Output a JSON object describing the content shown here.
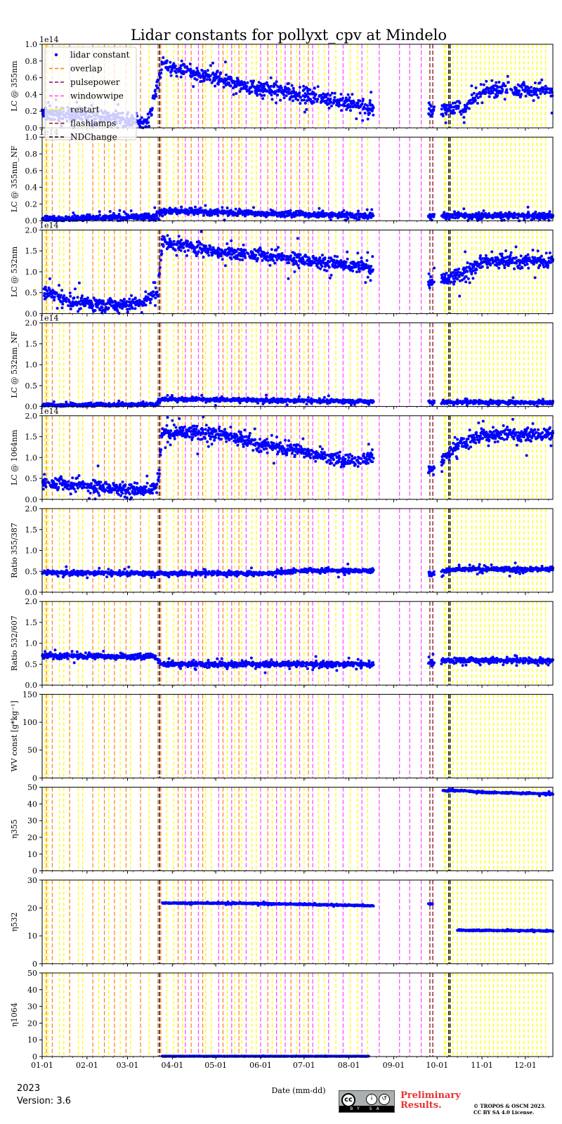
{
  "title": "Lidar constants for pollyxt_cpv at Mindelo",
  "footer": {
    "year": "2023",
    "version": "Version: 3.6",
    "license_badge": "cc",
    "license_by": "BY",
    "license_sa": "SA",
    "preliminary_line1": "Preliminary",
    "preliminary_line2": "Results.",
    "copyright_line1": "© TROPOS & OSCM 2023.",
    "copyright_line2": "CC BY SA 4.0 License."
  },
  "colors": {
    "points": "#0000ff",
    "overlap": "#ff7f0e",
    "pulsepower": "#8b008b",
    "windowwipe": "#ff44ff",
    "restart": "#ffff00",
    "flashlamps": "#8b1a1a",
    "ndchange": "#000000"
  },
  "chart_data": {
    "type": "scatter",
    "title": "Lidar constants for pollyxt_cpv at Mindelo",
    "xlabel": "Date (mm-dd)",
    "x_range": [
      "2023-01-01",
      "2023-12-20"
    ],
    "x_tick_labels": [
      "01-01",
      "02-01",
      "03-01",
      "04-01",
      "05-01",
      "06-01",
      "07-01",
      "08-01",
      "09-01",
      "10-01",
      "11-01",
      "12-01"
    ],
    "legend": {
      "placement": "top-left",
      "entries": [
        "lidar constant",
        "overlap",
        "pulsepower",
        "windowwipe",
        "restart",
        "flashlamps",
        "NDChange"
      ]
    },
    "event_lines": {
      "overlap": [
        "01-04",
        "01-08",
        "01-20",
        "02-05",
        "02-13",
        "02-20",
        "02-28",
        "03-10",
        "03-22",
        "03-24",
        "04-05",
        "04-14",
        "04-22",
        "05-06",
        "05-17",
        "06-06",
        "06-22",
        "07-04"
      ],
      "pulsepower": [
        "03-23"
      ],
      "windowwipe": [
        "03-24",
        "04-10",
        "04-19",
        "05-03",
        "05-12",
        "05-22",
        "06-01",
        "06-12",
        "06-18",
        "06-28",
        "07-07",
        "07-18",
        "07-28",
        "08-10",
        "08-22",
        "09-05",
        "09-12",
        "09-20",
        "09-28"
      ],
      "restart": [
        "01-03",
        "01-05",
        "01-13",
        "01-16",
        "01-26",
        "01-29",
        "02-09",
        "02-16",
        "02-24",
        "03-03",
        "03-16",
        "03-28",
        "04-02",
        "04-08",
        "04-24",
        "04-28",
        "05-09",
        "05-14",
        "05-19",
        "05-26",
        "05-29",
        "06-09",
        "06-15",
        "06-26",
        "07-01",
        "07-11",
        "07-15",
        "07-23",
        "08-02",
        "08-07",
        "08-14",
        "10-06",
        "10-07",
        "10-09",
        "10-12",
        "10-15",
        "10-18",
        "10-21",
        "10-25",
        "10-28",
        "10-31",
        "11-03",
        "11-06",
        "11-09",
        "11-12",
        "11-15",
        "11-18",
        "11-21",
        "11-24",
        "11-27",
        "11-30",
        "12-03",
        "12-06",
        "12-09",
        "12-12",
        "12-15"
      ],
      "flashlamps": [
        "09-26",
        "09-28"
      ],
      "ndchange": [
        "03-23",
        "10-09",
        "10-10"
      ]
    },
    "panels": [
      {
        "ylabel": "LC @ 355nm",
        "ylim": [
          0,
          1.0
        ],
        "yticks": [
          "0.0",
          "0.2",
          "0.4",
          "0.6",
          "0.8",
          "1.0"
        ],
        "scale_label": "1e14",
        "trend": [
          [
            "01-01",
            0.18
          ],
          [
            "02-15",
            0.12
          ],
          [
            "03-15",
            0.06
          ],
          [
            "03-25",
            0.75
          ],
          [
            "05-01",
            0.58
          ],
          [
            "06-01",
            0.47
          ],
          [
            "07-01",
            0.4
          ],
          [
            "08-01",
            0.3
          ],
          [
            "08-15",
            0.22
          ],
          [
            "09-28",
            0.22
          ],
          [
            "10-20",
            0.22
          ],
          [
            "11-01",
            0.45
          ],
          [
            "12-01",
            0.45
          ],
          [
            "12-20",
            0.45
          ]
        ],
        "spread": 0.12
      },
      {
        "ylabel": "LC @ 355nm_NF",
        "ylim": [
          0,
          1.0
        ],
        "yticks": [
          "0.0",
          "0.2",
          "0.4",
          "0.6",
          "0.8",
          "1.0"
        ],
        "scale_label": "1e14",
        "trend": [
          [
            "01-01",
            0.02
          ],
          [
            "03-20",
            0.05
          ],
          [
            "03-25",
            0.12
          ],
          [
            "05-01",
            0.1
          ],
          [
            "08-15",
            0.06
          ],
          [
            "09-28",
            0.06
          ],
          [
            "12-20",
            0.06
          ]
        ],
        "spread": 0.05
      },
      {
        "ylabel": "LC @ 532nm",
        "ylim": [
          0,
          2.0
        ],
        "yticks": [
          "0.0",
          "0.5",
          "1.0",
          "1.5",
          "2.0"
        ],
        "scale_label": "1e14",
        "trend": [
          [
            "01-01",
            0.55
          ],
          [
            "01-20",
            0.3
          ],
          [
            "02-15",
            0.2
          ],
          [
            "03-10",
            0.25
          ],
          [
            "03-22",
            0.5
          ],
          [
            "03-25",
            1.7
          ],
          [
            "05-01",
            1.5
          ],
          [
            "06-01",
            1.4
          ],
          [
            "07-01",
            1.3
          ],
          [
            "08-01",
            1.15
          ],
          [
            "08-15",
            1.1
          ],
          [
            "09-28",
            0.75
          ],
          [
            "10-15",
            0.9
          ],
          [
            "11-01",
            1.25
          ],
          [
            "12-01",
            1.25
          ],
          [
            "12-20",
            1.25
          ]
        ],
        "spread": 0.22
      },
      {
        "ylabel": "LC @ 532nm_NF",
        "ylim": [
          0,
          2.0
        ],
        "yticks": [
          "0.0",
          "0.5",
          "1.0",
          "1.5",
          "2.0"
        ],
        "scale_label": "1e14",
        "trend": [
          [
            "01-01",
            0.03
          ],
          [
            "03-20",
            0.05
          ],
          [
            "03-25",
            0.18
          ],
          [
            "06-01",
            0.15
          ],
          [
            "08-15",
            0.12
          ],
          [
            "09-28",
            0.1
          ],
          [
            "12-20",
            0.1
          ]
        ],
        "spread": 0.06
      },
      {
        "ylabel": "LC @ 1064nm",
        "ylim": [
          0,
          2.0
        ],
        "yticks": [
          "0.0",
          "0.5",
          "1.0",
          "1.5",
          "2.0"
        ],
        "scale_label": "1e14",
        "trend": [
          [
            "01-01",
            0.4
          ],
          [
            "02-15",
            0.3
          ],
          [
            "03-10",
            0.2
          ],
          [
            "03-22",
            0.3
          ],
          [
            "03-25",
            1.6
          ],
          [
            "05-01",
            1.6
          ],
          [
            "06-01",
            1.3
          ],
          [
            "07-01",
            1.15
          ],
          [
            "08-01",
            0.9
          ],
          [
            "08-15",
            1.0
          ],
          [
            "09-28",
            0.7
          ],
          [
            "10-15",
            1.3
          ],
          [
            "11-01",
            1.55
          ],
          [
            "12-20",
            1.55
          ]
        ],
        "spread": 0.22
      },
      {
        "ylabel": "Ratio 355/387",
        "ylim": [
          0,
          2.0
        ],
        "yticks": [
          "0.0",
          "0.5",
          "1.0",
          "1.5",
          "2.0"
        ],
        "scale_label": "",
        "trend": [
          [
            "01-01",
            0.47
          ],
          [
            "03-25",
            0.45
          ],
          [
            "06-01",
            0.45
          ],
          [
            "07-01",
            0.52
          ],
          [
            "08-15",
            0.52
          ],
          [
            "09-28",
            0.45
          ],
          [
            "10-15",
            0.55
          ],
          [
            "12-20",
            0.55
          ]
        ],
        "spread": 0.07
      },
      {
        "ylabel": "Ratio 532/607",
        "ylim": [
          0,
          2.0
        ],
        "yticks": [
          "0.0",
          "0.5",
          "1.0",
          "1.5",
          "2.0"
        ],
        "scale_label": "",
        "trend": [
          [
            "01-01",
            0.7
          ],
          [
            "03-20",
            0.68
          ],
          [
            "03-25",
            0.5
          ],
          [
            "08-15",
            0.5
          ],
          [
            "09-28",
            0.55
          ],
          [
            "10-15",
            0.6
          ],
          [
            "12-20",
            0.57
          ]
        ],
        "spread": 0.09
      },
      {
        "ylabel": "WV const [g*kg⁻¹]",
        "ylim": [
          0,
          150
        ],
        "yticks": [
          "0",
          "50",
          "100",
          "150"
        ],
        "scale_label": "",
        "trend": [],
        "spread": 0
      },
      {
        "ylabel": "η355",
        "ylim": [
          0,
          50
        ],
        "yticks": [
          "0",
          "10",
          "20",
          "30",
          "40",
          "50"
        ],
        "scale_label": "",
        "trend": [
          [
            "10-05",
            48
          ],
          [
            "10-20",
            48
          ],
          [
            "11-01",
            47
          ],
          [
            "12-20",
            46
          ]
        ],
        "spread": 0.6
      },
      {
        "ylabel": "η532",
        "ylim": [
          0,
          30
        ],
        "yticks": [
          "0",
          "10",
          "20",
          "30"
        ],
        "scale_label": "",
        "trend": [
          [
            "03-25",
            21.8
          ],
          [
            "06-01",
            21.6
          ],
          [
            "08-15",
            20.8
          ],
          [
            "09-26",
            21.5
          ],
          [
            "09-28",
            21.5
          ]
        ],
        "trend2": [
          [
            "10-15",
            12.0
          ],
          [
            "12-20",
            11.8
          ]
        ],
        "spread": 0.3
      },
      {
        "ylabel": "η1064",
        "ylim": [
          0,
          50
        ],
        "yticks": [
          "0",
          "10",
          "20",
          "30",
          "40",
          "50"
        ],
        "scale_label": "",
        "trend": [
          [
            "03-25",
            0.2
          ],
          [
            "08-15",
            0.2
          ]
        ],
        "spread": 0.1
      }
    ]
  }
}
